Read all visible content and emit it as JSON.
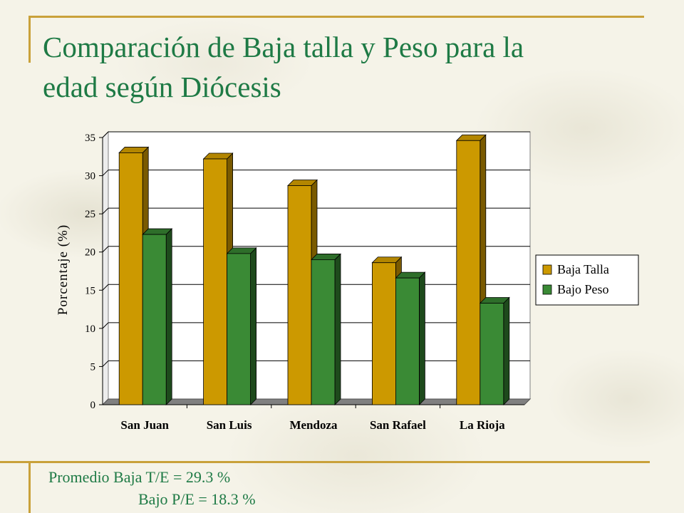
{
  "title_line1": "Comparación de Baja talla y Peso para la",
  "title_line2": "edad según Diócesis",
  "chart_data": {
    "type": "bar",
    "categories": [
      "San Juan",
      "San Luis",
      "Mendoza",
      "San Rafael",
      "La Rioja"
    ],
    "series": [
      {
        "name": "Baja Talla",
        "values": [
          33.0,
          32.2,
          28.7,
          18.6,
          34.6
        ],
        "color": "#cc9900",
        "dark": "#7a5a00",
        "top": "#b38600"
      },
      {
        "name": "Bajo Peso",
        "values": [
          22.3,
          19.8,
          19.0,
          16.6,
          13.3
        ],
        "color": "#3a8a35",
        "dark": "#1e4a1c",
        "top": "#2e6e2a"
      }
    ],
    "ylabel": "Porcentaje (%)",
    "ylim": [
      0,
      35
    ],
    "yticks": [
      0,
      5,
      10,
      15,
      20,
      25,
      30,
      35
    ],
    "grid": true,
    "legend": "right"
  },
  "footer": {
    "line1": "Promedio Baja T/E = 29.3 %",
    "line2": "Bajo P/E = 18.3 %"
  }
}
